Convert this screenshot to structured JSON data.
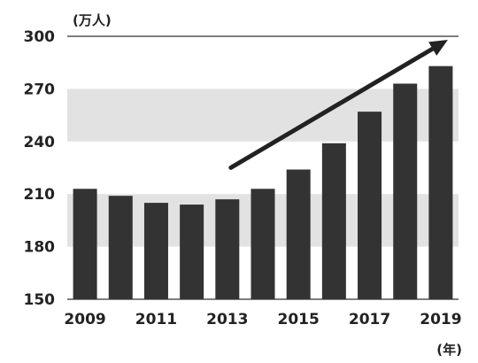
{
  "chart_data": {
    "type": "bar",
    "title": "",
    "ylabel": "(万人)",
    "xlabel": "(年)",
    "ylim": [
      150,
      300
    ],
    "yticks": [
      150,
      180,
      210,
      240,
      270,
      300
    ],
    "shaded_bands": [
      [
        180,
        210
      ],
      [
        240,
        270
      ]
    ],
    "categories": [
      "2009",
      "2010",
      "2011",
      "2012",
      "2013",
      "2014",
      "2015",
      "2016",
      "2017",
      "2018",
      "2019"
    ],
    "xtick_labels": [
      "2009",
      "",
      "2011",
      "",
      "2013",
      "",
      "2015",
      "",
      "2017",
      "",
      "2019"
    ],
    "values": [
      213,
      209,
      205,
      204,
      207,
      213,
      224,
      239,
      257,
      273,
      283
    ],
    "trend_arrow": {
      "from": [
        "2013",
        218
      ],
      "to": [
        "2019",
        298
      ]
    },
    "colors": {
      "bar": "#333333",
      "band": "#e2e2e2",
      "axis": "#555555",
      "arrow": "#222222"
    },
    "grid": false
  }
}
